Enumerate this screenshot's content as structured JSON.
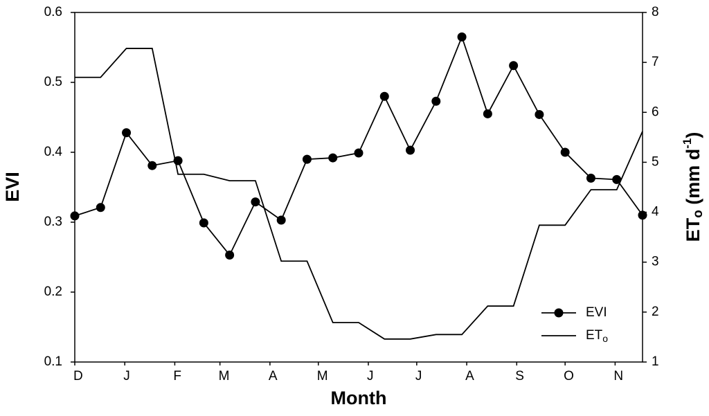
{
  "chart_data": {
    "type": "line",
    "xlabel": "Month",
    "ylabel": "EVI",
    "y2label": {
      "main": "ET",
      "sub": "o",
      "unit": " (mm d",
      "sup": "-1",
      "end": ")"
    },
    "x": [
      0,
      16,
      32,
      48,
      64,
      80,
      96,
      112,
      128,
      144,
      160,
      176,
      192,
      208,
      224,
      240,
      256,
      272,
      288,
      304,
      320,
      336,
      352
    ],
    "xlim": [
      0,
      352
    ],
    "xticks": [
      {
        "value": 0,
        "label": "D"
      },
      {
        "value": 31,
        "label": "J"
      },
      {
        "value": 62,
        "label": "F"
      },
      {
        "value": 90,
        "label": "M"
      },
      {
        "value": 121,
        "label": "A"
      },
      {
        "value": 151,
        "label": "M"
      },
      {
        "value": 182,
        "label": "J"
      },
      {
        "value": 212,
        "label": "J"
      },
      {
        "value": 243,
        "label": "A"
      },
      {
        "value": 274,
        "label": "S"
      },
      {
        "value": 304,
        "label": "O"
      },
      {
        "value": 335,
        "label": "N"
      }
    ],
    "ylim": [
      0.1,
      0.6
    ],
    "yticks": [
      0.1,
      0.2,
      0.3,
      0.4,
      0.5,
      0.6
    ],
    "y2lim": [
      1,
      8
    ],
    "y2ticks": [
      1,
      2,
      3,
      4,
      5,
      6,
      7,
      8
    ],
    "legend": "lower right",
    "series": [
      {
        "name": "EVI",
        "color": "#000000",
        "marker": "circle",
        "values": [
          0.309,
          0.321,
          0.428,
          0.381,
          0.388,
          0.299,
          0.253,
          0.329,
          0.303,
          0.39,
          0.392,
          0.399,
          0.48,
          0.403,
          0.473,
          0.565,
          0.455,
          0.524,
          0.454,
          0.4,
          0.363,
          0.361,
          0.31
        ]
      },
      {
        "name": "ET",
        "name_subscript": "o",
        "color": "#000000",
        "axis": "y2",
        "values": [
          6.7,
          6.7,
          7.28,
          7.28,
          4.76,
          4.76,
          4.63,
          4.63,
          3.02,
          3.02,
          1.79,
          1.79,
          1.46,
          1.46,
          1.55,
          1.55,
          2.12,
          2.12,
          3.74,
          3.74,
          4.45,
          4.45,
          5.62
        ]
      }
    ]
  }
}
